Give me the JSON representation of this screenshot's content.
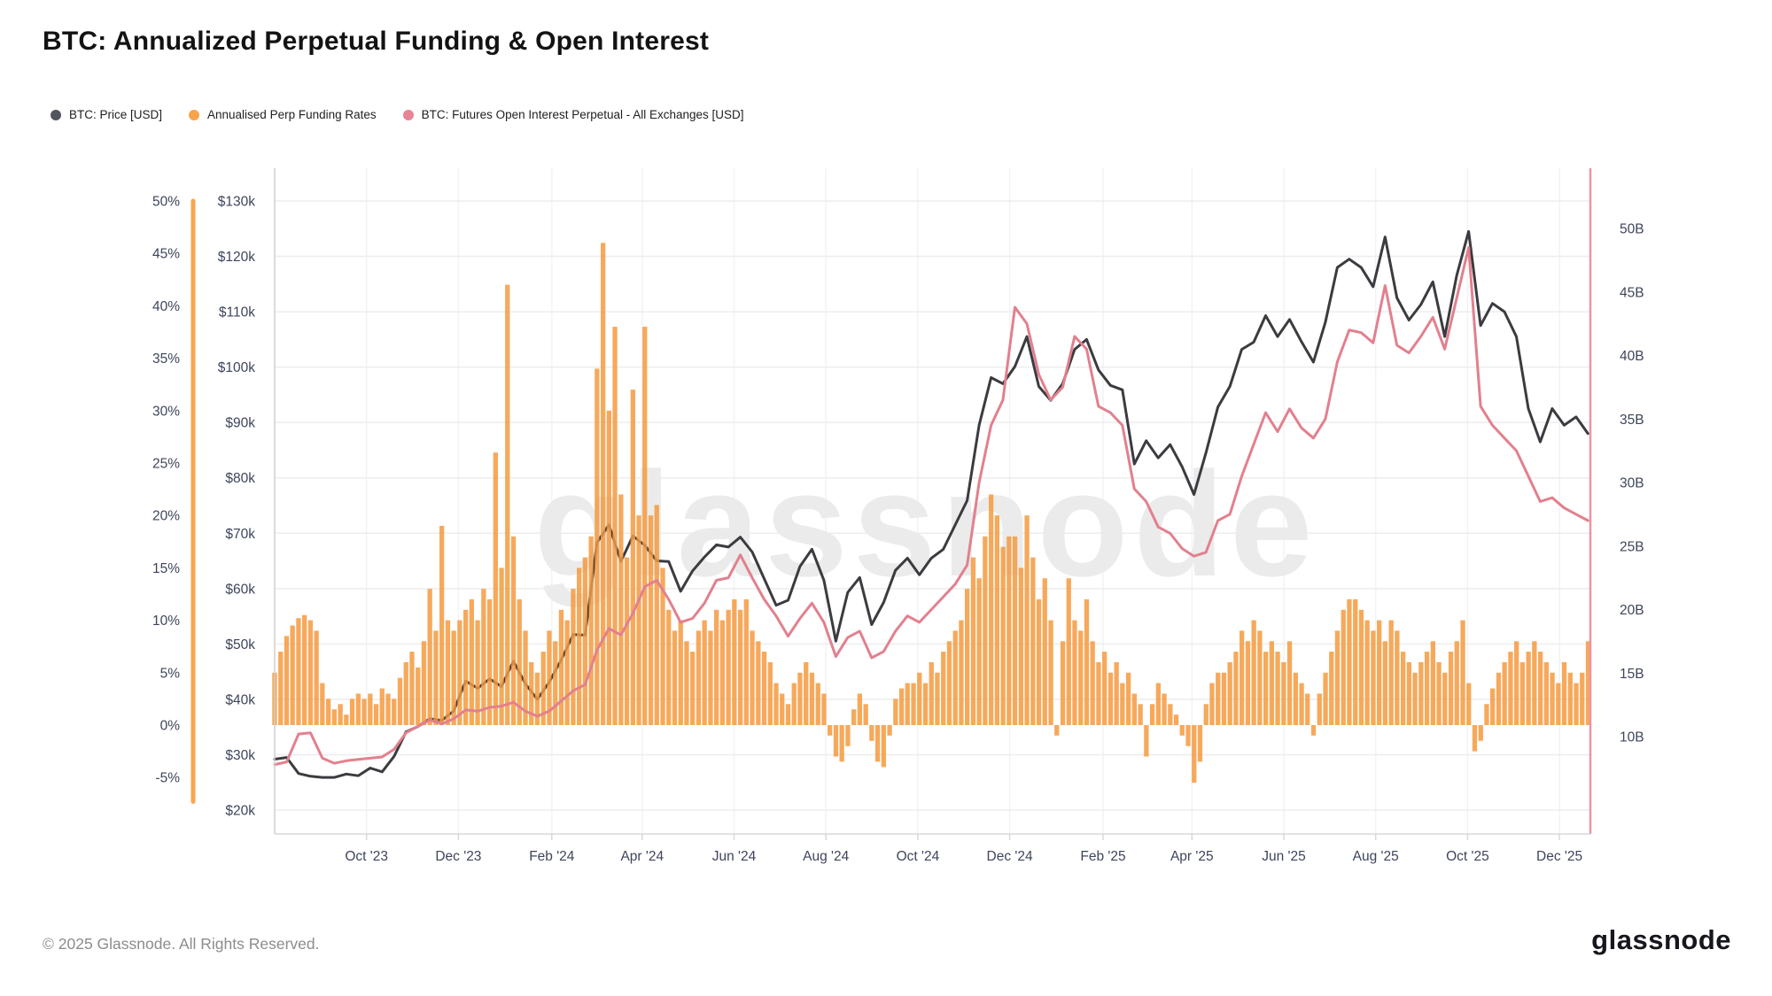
{
  "title": "BTC: Annualized Perpetual Funding & Open Interest",
  "watermark": "glassnode",
  "footer": {
    "copyright": "© 2025 Glassnode. All Rights Reserved.",
    "logo_text": "glassnode"
  },
  "legend": {
    "items": [
      {
        "label": "BTC: Price [USD]",
        "color": "#53555e"
      },
      {
        "label": "Annualised Perp Funding Rates",
        "color": "#f7a44c"
      },
      {
        "label": "BTC: Futures Open Interest Perpetual - All Exchanges [USD]",
        "color": "#e88494"
      }
    ]
  },
  "chart_data": {
    "type": "mixed",
    "x_axis": {
      "note": "t = days from left edge of plotted range (late Jul 2023) to late Dec 2025",
      "ticks": [
        {
          "t": 61,
          "label": "Oct '23"
        },
        {
          "t": 122,
          "label": "Dec '23"
        },
        {
          "t": 184,
          "label": "Feb '24"
        },
        {
          "t": 244,
          "label": "Apr '24"
        },
        {
          "t": 305,
          "label": "Jun '24"
        },
        {
          "t": 366,
          "label": "Aug '24"
        },
        {
          "t": 427,
          "label": "Oct '24"
        },
        {
          "t": 488,
          "label": "Dec '24"
        },
        {
          "t": 550,
          "label": "Feb '25"
        },
        {
          "t": 609,
          "label": "Apr '25"
        },
        {
          "t": 670,
          "label": "Jun '25"
        },
        {
          "t": 731,
          "label": "Aug '25"
        },
        {
          "t": 792,
          "label": "Oct '25"
        },
        {
          "t": 853,
          "label": "Dec '25"
        }
      ]
    },
    "axes": {
      "percent": {
        "side": "outer-left",
        "spine_color": "#f9a44f",
        "ticks": [
          {
            "v": 50,
            "label": "50%"
          },
          {
            "v": 45,
            "label": "45%"
          },
          {
            "v": 40,
            "label": "40%"
          },
          {
            "v": 35,
            "label": "35%"
          },
          {
            "v": 30,
            "label": "30%"
          },
          {
            "v": 25,
            "label": "25%"
          },
          {
            "v": 20,
            "label": "20%"
          },
          {
            "v": 15,
            "label": "15%"
          },
          {
            "v": 10,
            "label": "10%"
          },
          {
            "v": 5,
            "label": "5%"
          },
          {
            "v": 0,
            "label": "0%"
          },
          {
            "v": -5,
            "label": "-5%"
          }
        ]
      },
      "price": {
        "side": "inner-left",
        "ticks": [
          {
            "v": 130,
            "label": "$130k"
          },
          {
            "v": 120,
            "label": "$120k"
          },
          {
            "v": 110,
            "label": "$110k"
          },
          {
            "v": 100,
            "label": "$100k"
          },
          {
            "v": 90,
            "label": "$90k"
          },
          {
            "v": 80,
            "label": "$80k"
          },
          {
            "v": 70,
            "label": "$70k"
          },
          {
            "v": 60,
            "label": "$60k"
          },
          {
            "v": 50,
            "label": "$50k"
          },
          {
            "v": 40,
            "label": "$40k"
          },
          {
            "v": 30,
            "label": "$30k"
          },
          {
            "v": 20,
            "label": "$20k"
          }
        ]
      },
      "open_interest": {
        "side": "right",
        "spine_color": "#ee93a2",
        "ticks": [
          {
            "v": 50,
            "label": "50B"
          },
          {
            "v": 45,
            "label": "45B"
          },
          {
            "v": 40,
            "label": "40B"
          },
          {
            "v": 35,
            "label": "35B"
          },
          {
            "v": 30,
            "label": "30B"
          },
          {
            "v": 25,
            "label": "25B"
          },
          {
            "v": 20,
            "label": "20B"
          },
          {
            "v": 15,
            "label": "15B"
          },
          {
            "v": 10,
            "label": "10B"
          }
        ]
      }
    },
    "series": [
      {
        "name": "BTC: Price [USD]",
        "type": "line",
        "axis": "price",
        "unit": "thousand USD",
        "color": "#3b3b40",
        "step_days": 7.927,
        "values": [
          29.2,
          29.5,
          26.6,
          26.1,
          25.9,
          25.9,
          26.5,
          26.2,
          27.6,
          26.9,
          29.7,
          34.1,
          35.1,
          36.5,
          36.2,
          37.9,
          43.3,
          42.0,
          43.7,
          42.3,
          46.9,
          42.8,
          40.0,
          43.1,
          47.1,
          51.7,
          51.6,
          68.3,
          71.5,
          64.9,
          69.5,
          67.8,
          65.0,
          64.9,
          59.5,
          63.2,
          65.7,
          67.9,
          67.5,
          69.3,
          66.6,
          61.8,
          57.0,
          57.9,
          64.0,
          67.1,
          61.5,
          50.5,
          59.3,
          62.0,
          53.5,
          57.5,
          63.3,
          65.5,
          62.5,
          65.5,
          67.1,
          71.5,
          75.9,
          89.5,
          98.1,
          97.0,
          100.1,
          105.5,
          96.5,
          94.0,
          97.0,
          103.2,
          105.0,
          99.5,
          96.7,
          95.9,
          82.5,
          86.7,
          83.6,
          86.0,
          82.0,
          77.0,
          84.5,
          92.8,
          96.5,
          103.2,
          104.5,
          109.3,
          105.5,
          108.6,
          104.6,
          100.9,
          108.1,
          118.0,
          119.5,
          118.0,
          114.5,
          123.5,
          112.5,
          108.5,
          111.3,
          115.4,
          105.5,
          116.5,
          124.5,
          107.5,
          111.5,
          110.0,
          105.5,
          92.5,
          86.5,
          92.5,
          89.5,
          91.0,
          88.0
        ]
      },
      {
        "name": "Annualised Perp Funding Rates",
        "type": "bar",
        "axis": "percent",
        "unit": "% annualized",
        "color": "#f49a3e",
        "opacity": 0.85,
        "step_days": 3.964,
        "values": [
          5,
          7,
          8.5,
          9.5,
          10.2,
          10.5,
          10,
          9,
          4,
          2.5,
          1.5,
          2,
          1,
          2.5,
          3,
          2.5,
          3,
          2,
          3.5,
          3,
          2.5,
          4.5,
          6,
          7,
          5.5,
          8,
          13,
          9,
          19,
          10,
          9,
          10,
          11,
          12,
          10,
          13,
          12,
          26,
          15,
          42,
          18,
          12,
          9,
          6,
          5,
          7,
          9,
          8,
          11,
          10,
          13,
          15,
          16,
          18,
          34,
          46,
          30,
          38,
          22,
          16,
          32,
          20,
          38,
          20,
          21,
          15,
          11,
          9,
          10,
          8,
          7,
          9,
          10,
          9,
          11,
          10,
          11,
          12,
          11,
          12,
          9,
          8,
          7,
          6,
          4,
          3,
          2,
          4,
          5,
          6,
          5,
          4,
          3,
          -1,
          -3,
          -3.5,
          -2,
          1.5,
          3,
          2,
          -1.5,
          -3.5,
          -4,
          -1,
          2.5,
          3.5,
          4,
          4,
          5,
          4,
          6,
          5,
          7,
          8,
          9,
          10,
          13,
          16,
          14,
          18,
          22,
          20,
          17,
          18,
          18,
          15,
          20,
          16,
          12,
          14,
          10,
          -1,
          8,
          14,
          10,
          9,
          12,
          8,
          6,
          7,
          5,
          6,
          4,
          5,
          3,
          2,
          -3,
          2,
          4,
          3,
          2,
          1,
          -1,
          -2,
          -5.5,
          -3.5,
          2,
          4,
          5,
          5,
          6,
          7,
          9,
          8,
          10,
          9,
          7,
          8,
          7,
          6,
          8,
          5,
          4,
          3,
          -1,
          3,
          5,
          7,
          9,
          11,
          12,
          12,
          11,
          10,
          9,
          10,
          8,
          10,
          9,
          7,
          6,
          5,
          6,
          7,
          8,
          6,
          5,
          7,
          8,
          10,
          4,
          -2.5,
          -1.5,
          2,
          3.5,
          5,
          6,
          7,
          8,
          6,
          7,
          8,
          7,
          6,
          5,
          4,
          6,
          5,
          4,
          5,
          8
        ]
      },
      {
        "name": "BTC: Futures Open Interest Perpetual - All Exchanges [USD]",
        "type": "line",
        "axis": "open_interest",
        "unit": "billion USD",
        "color": "#e2808e",
        "step_days": 7.927,
        "values": [
          7.8,
          8.0,
          10.2,
          10.3,
          8.3,
          7.9,
          8.1,
          8.2,
          8.3,
          8.4,
          9.0,
          10.3,
          10.8,
          11.3,
          11.0,
          11.4,
          12.1,
          12.0,
          12.3,
          12.4,
          12.7,
          12.0,
          11.6,
          12.0,
          12.8,
          13.6,
          14.1,
          16.8,
          18.5,
          18.0,
          19.7,
          21.8,
          22.3,
          20.8,
          19.0,
          19.3,
          20.5,
          22.3,
          22.5,
          24.3,
          22.5,
          20.8,
          19.5,
          17.9,
          19.3,
          20.5,
          19.0,
          16.3,
          17.8,
          18.3,
          16.2,
          16.7,
          18.3,
          19.5,
          19.0,
          20.0,
          21.0,
          22.0,
          23.5,
          30.0,
          34.5,
          36.5,
          43.8,
          42.5,
          38.5,
          36.5,
          37.5,
          41.5,
          40.5,
          36.0,
          35.5,
          34.5,
          29.5,
          28.5,
          26.5,
          26.0,
          24.8,
          24.2,
          24.5,
          27.0,
          27.5,
          30.5,
          33.0,
          35.5,
          34.0,
          35.8,
          34.3,
          33.5,
          35.0,
          39.5,
          42.0,
          41.8,
          41.0,
          45.5,
          40.8,
          40.2,
          41.5,
          43.0,
          40.5,
          44.5,
          48.5,
          36.0,
          34.5,
          33.5,
          32.5,
          30.5,
          28.5,
          28.8,
          28.0,
          27.5,
          27.0
        ]
      }
    ],
    "style": {
      "grid_color": "#ededed",
      "vgrid_color": "#f3f3f3",
      "axis_text_color": "#3e455b",
      "bottom_axis_color": "#d8d8d8",
      "price_spine_color": "#cfcfcf",
      "watermark_color": "#ebebeb"
    }
  }
}
